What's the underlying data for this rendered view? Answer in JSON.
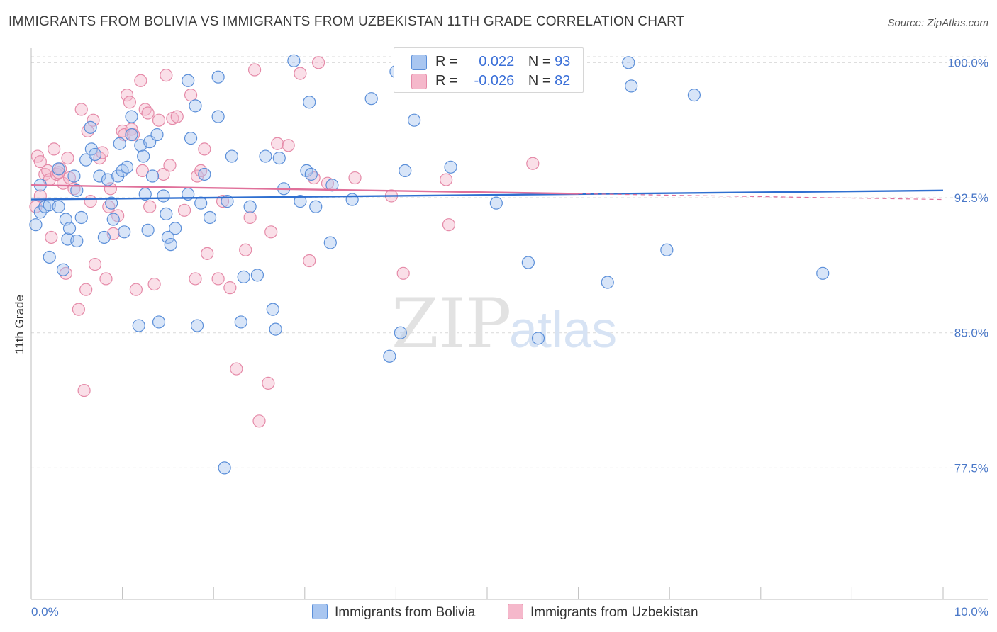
{
  "title": "IMMIGRANTS FROM BOLIVIA VS IMMIGRANTS FROM UZBEKISTAN 11TH GRADE CORRELATION CHART",
  "source": "Source: ZipAtlas.com",
  "watermark": {
    "zip": "ZIP",
    "atlas": "atlas"
  },
  "colors": {
    "bolivia_fill": "#a9c6f0",
    "bolivia_stroke": "#5b8fd9",
    "bolivia_line": "#2f6fd0",
    "uzbek_fill": "#f5b8cb",
    "uzbek_stroke": "#e58aa8",
    "uzbek_line": "#e0709a",
    "tick": "#4a78c8",
    "grid": "#d9d9d9"
  },
  "legend_top": {
    "bolivia": {
      "r_label": "R =",
      "r_value": "0.022",
      "n_label": "N =",
      "n_value": "93"
    },
    "uzbekistan": {
      "r_label": "R =",
      "r_value": "-0.026",
      "n_label": "N =",
      "n_value": "82"
    }
  },
  "chart_data": {
    "type": "scatter",
    "title": "IMMIGRANTS FROM BOLIVIA VS IMMIGRANTS FROM UZBEKISTAN 11TH GRADE CORRELATION CHART",
    "xlabel": "",
    "ylabel": "11th Grade",
    "xlim": [
      0,
      10
    ],
    "ylim": [
      70.2,
      100.8
    ],
    "x_tick_labels": [
      "0.0%",
      "10.0%"
    ],
    "y_ticks": [
      77.5,
      85.0,
      92.5,
      100.0
    ],
    "y_tick_labels": [
      "77.5%",
      "85.0%",
      "92.5%",
      "100.0%"
    ],
    "grid": true,
    "legend_position": "bottom",
    "series": [
      {
        "name": "Immigrants from Bolivia",
        "trend": [
          [
            0.0,
            92.4
          ],
          [
            10.0,
            92.9
          ]
        ],
        "points": [
          [
            0.1,
            91.7
          ],
          [
            0.05,
            91.0
          ],
          [
            0.1,
            93.2
          ],
          [
            0.15,
            92.0
          ],
          [
            0.2,
            92.1
          ],
          [
            0.2,
            89.2
          ],
          [
            0.3,
            94.1
          ],
          [
            0.3,
            92.0
          ],
          [
            0.35,
            88.5
          ],
          [
            0.38,
            91.3
          ],
          [
            0.4,
            90.2
          ],
          [
            0.42,
            90.8
          ],
          [
            0.47,
            93.7
          ],
          [
            0.5,
            92.9
          ],
          [
            0.5,
            90.1
          ],
          [
            0.55,
            91.4
          ],
          [
            0.6,
            94.6
          ],
          [
            0.65,
            96.4
          ],
          [
            0.66,
            95.2
          ],
          [
            0.7,
            94.9
          ],
          [
            0.75,
            93.7
          ],
          [
            0.8,
            90.3
          ],
          [
            0.84,
            93.5
          ],
          [
            0.88,
            92.2
          ],
          [
            0.9,
            91.3
          ],
          [
            0.95,
            93.7
          ],
          [
            0.97,
            95.5
          ],
          [
            1.0,
            94.0
          ],
          [
            1.02,
            90.6
          ],
          [
            1.05,
            94.2
          ],
          [
            1.1,
            96.0
          ],
          [
            1.1,
            97.0
          ],
          [
            1.18,
            85.4
          ],
          [
            1.2,
            95.4
          ],
          [
            1.23,
            94.8
          ],
          [
            1.25,
            92.7
          ],
          [
            1.28,
            90.7
          ],
          [
            1.3,
            95.6
          ],
          [
            1.33,
            93.7
          ],
          [
            1.38,
            96.0
          ],
          [
            1.4,
            85.6
          ],
          [
            1.45,
            92.6
          ],
          [
            1.48,
            91.6
          ],
          [
            1.5,
            90.3
          ],
          [
            1.53,
            89.9
          ],
          [
            1.58,
            90.8
          ],
          [
            1.72,
            99.0
          ],
          [
            1.72,
            92.7
          ],
          [
            1.75,
            95.8
          ],
          [
            1.8,
            97.6
          ],
          [
            1.82,
            85.4
          ],
          [
            1.86,
            92.2
          ],
          [
            1.9,
            93.8
          ],
          [
            1.96,
            91.4
          ],
          [
            2.05,
            99.2
          ],
          [
            2.05,
            97.0
          ],
          [
            2.15,
            92.3
          ],
          [
            2.2,
            94.8
          ],
          [
            2.3,
            85.6
          ],
          [
            2.33,
            88.1
          ],
          [
            2.4,
            92.0
          ],
          [
            2.48,
            88.2
          ],
          [
            2.57,
            94.8
          ],
          [
            2.65,
            86.3
          ],
          [
            2.68,
            85.2
          ],
          [
            2.72,
            94.7
          ],
          [
            2.77,
            93.0
          ],
          [
            2.88,
            100.1
          ],
          [
            2.95,
            92.3
          ],
          [
            3.02,
            94.0
          ],
          [
            3.05,
            97.8
          ],
          [
            3.07,
            93.8
          ],
          [
            3.12,
            92.0
          ],
          [
            3.3,
            93.2
          ],
          [
            3.28,
            90.0
          ],
          [
            3.52,
            92.4
          ],
          [
            3.73,
            98.0
          ],
          [
            3.93,
            83.7
          ],
          [
            4.0,
            99.5
          ],
          [
            4.1,
            94.0
          ],
          [
            4.2,
            96.8
          ],
          [
            4.6,
            94.2
          ],
          [
            5.1,
            92.2
          ],
          [
            5.45,
            88.9
          ],
          [
            5.56,
            84.7
          ],
          [
            6.32,
            87.8
          ],
          [
            6.55,
            100.0
          ],
          [
            6.58,
            98.7
          ],
          [
            6.97,
            89.6
          ],
          [
            7.27,
            98.2
          ],
          [
            8.68,
            88.3
          ],
          [
            2.12,
            77.5
          ],
          [
            4.05,
            85.0
          ]
        ]
      },
      {
        "name": "Immigrants from Uzbekistan",
        "trend": [
          [
            0.0,
            93.2
          ],
          [
            10.0,
            92.4
          ]
        ],
        "points": [
          [
            0.05,
            92.0
          ],
          [
            0.07,
            94.8
          ],
          [
            0.1,
            94.5
          ],
          [
            0.15,
            93.8
          ],
          [
            0.18,
            94.0
          ],
          [
            0.2,
            93.5
          ],
          [
            0.25,
            95.2
          ],
          [
            0.28,
            93.8
          ],
          [
            0.32,
            94.1
          ],
          [
            0.35,
            93.3
          ],
          [
            0.38,
            88.3
          ],
          [
            0.4,
            94.7
          ],
          [
            0.42,
            93.6
          ],
          [
            0.47,
            93.0
          ],
          [
            0.52,
            86.3
          ],
          [
            0.55,
            97.4
          ],
          [
            0.58,
            81.8
          ],
          [
            0.6,
            87.4
          ],
          [
            0.62,
            96.2
          ],
          [
            0.65,
            92.3
          ],
          [
            0.68,
            96.8
          ],
          [
            0.7,
            88.8
          ],
          [
            0.75,
            94.7
          ],
          [
            0.78,
            95.0
          ],
          [
            0.82,
            88.0
          ],
          [
            0.85,
            92.0
          ],
          [
            0.87,
            93.0
          ],
          [
            0.9,
            90.5
          ],
          [
            0.95,
            91.5
          ],
          [
            1.0,
            96.2
          ],
          [
            1.02,
            96.0
          ],
          [
            1.05,
            98.2
          ],
          [
            1.08,
            97.8
          ],
          [
            1.1,
            96.3
          ],
          [
            1.15,
            87.4
          ],
          [
            1.2,
            99.0
          ],
          [
            1.22,
            94.0
          ],
          [
            1.25,
            97.4
          ],
          [
            1.28,
            97.2
          ],
          [
            1.3,
            92.0
          ],
          [
            1.35,
            87.7
          ],
          [
            1.4,
            96.8
          ],
          [
            1.45,
            93.8
          ],
          [
            1.48,
            99.3
          ],
          [
            1.52,
            94.3
          ],
          [
            1.55,
            96.9
          ],
          [
            1.6,
            97.0
          ],
          [
            1.68,
            91.8
          ],
          [
            1.75,
            98.2
          ],
          [
            1.8,
            88.0
          ],
          [
            1.82,
            93.7
          ],
          [
            1.86,
            94.0
          ],
          [
            1.9,
            95.2
          ],
          [
            1.93,
            89.4
          ],
          [
            2.05,
            88.0
          ],
          [
            2.1,
            92.3
          ],
          [
            2.18,
            87.5
          ],
          [
            2.25,
            83.0
          ],
          [
            2.35,
            89.6
          ],
          [
            2.4,
            91.4
          ],
          [
            2.45,
            99.6
          ],
          [
            2.5,
            80.1
          ],
          [
            2.6,
            82.2
          ],
          [
            2.63,
            90.6
          ],
          [
            2.7,
            95.5
          ],
          [
            2.82,
            95.4
          ],
          [
            2.95,
            99.4
          ],
          [
            3.05,
            89.0
          ],
          [
            3.1,
            93.6
          ],
          [
            3.15,
            100.0
          ],
          [
            3.25,
            93.3
          ],
          [
            3.55,
            93.6
          ],
          [
            3.95,
            92.6
          ],
          [
            4.05,
            100.0
          ],
          [
            4.08,
            88.3
          ],
          [
            4.55,
            93.5
          ],
          [
            4.58,
            91.0
          ],
          [
            5.5,
            94.4
          ],
          [
            0.1,
            92.6
          ],
          [
            0.22,
            90.3
          ],
          [
            1.12,
            96.0
          ],
          [
            0.3,
            93.9
          ]
        ]
      }
    ]
  },
  "bottom_legend": [
    "Immigrants from Bolivia",
    "Immigrants from Uzbekistan"
  ]
}
